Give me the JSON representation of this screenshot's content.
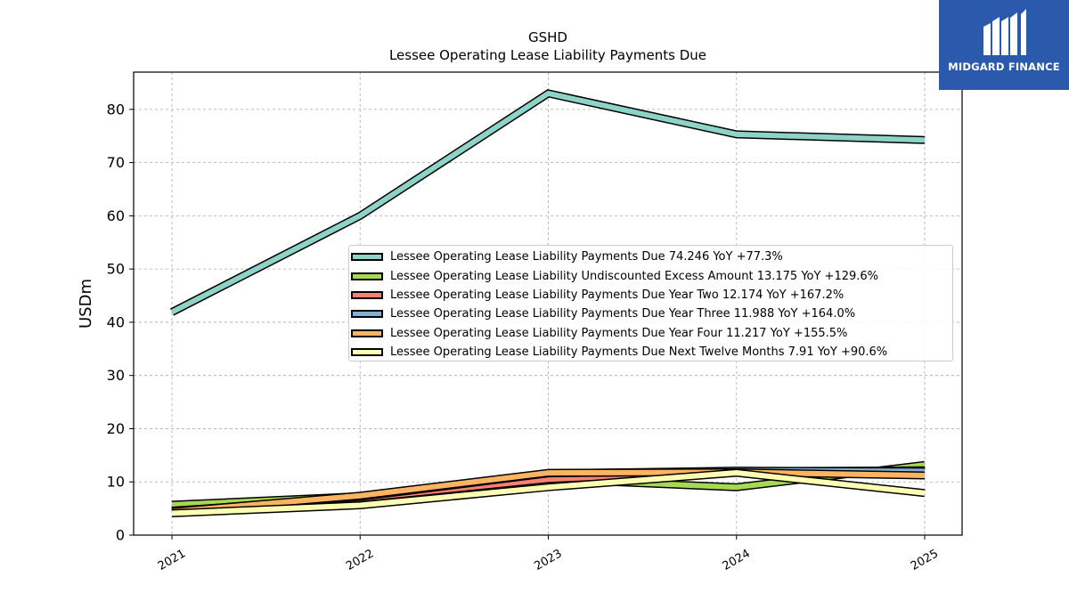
{
  "chart_data": {
    "type": "line",
    "title": "GSHD",
    "subtitle": "Lessee Operating Lease Liability Payments Due",
    "ylabel": "USDm",
    "xlabel": "",
    "x": [
      "2021",
      "2022",
      "2023",
      "2024",
      "2025"
    ],
    "ylim": [
      0,
      87
    ],
    "yticks": [
      0,
      10,
      20,
      30,
      40,
      50,
      60,
      70,
      80
    ],
    "grid": true,
    "legend_position": "center-right",
    "series": [
      {
        "name": "Lessee Operating Lease Liability Payments Due",
        "legend": "Lessee Operating Lease Liability Payments Due  74.246 YoY +77.3%",
        "color": "#8dd3c7",
        "values": [
          41.9,
          60.0,
          83.0,
          75.3,
          74.246
        ]
      },
      {
        "name": "Lessee Operating Lease Liability Undiscounted Excess Amount",
        "legend": "Lessee Operating Lease Liability Undiscounted Excess Amount  13.175 YoY +129.6%",
        "color": "#a6d854",
        "values": [
          5.7,
          7.3,
          10.5,
          9.0,
          13.175
        ]
      },
      {
        "name": "Lessee Operating Lease Liability Payments Due Year Two",
        "legend": "Lessee Operating Lease Liability Payments Due Year Two  12.174 YoY +167.2%",
        "color": "#fb8072",
        "values": [
          4.6,
          6.9,
          10.5,
          12.0,
          12.174
        ]
      },
      {
        "name": "Lessee Operating Lease Liability Payments Due Year Three",
        "legend": "Lessee Operating Lease Liability Payments Due Year Three  11.988 YoY +164.0%",
        "color": "#80b1d3",
        "values": [
          4.5,
          7.2,
          11.6,
          12.1,
          11.988
        ]
      },
      {
        "name": "Lessee Operating Lease Liability Payments Due Year Four",
        "legend": "Lessee Operating Lease Liability Payments Due Year Four  11.217 YoY +155.5%",
        "color": "#fdb462",
        "values": [
          4.4,
          7.4,
          11.7,
          11.8,
          11.217
        ]
      },
      {
        "name": "Lessee Operating Lease Liability Payments Due Next Twelve Months",
        "legend": "Lessee Operating Lease Liability Payments Due Next Twelve Months  7.91 YoY +90.6%",
        "color": "#ffffb3",
        "values": [
          4.1,
          5.6,
          9.0,
          11.7,
          7.91
        ]
      }
    ]
  },
  "logo": {
    "text": "MIDGARD FINANCE"
  }
}
